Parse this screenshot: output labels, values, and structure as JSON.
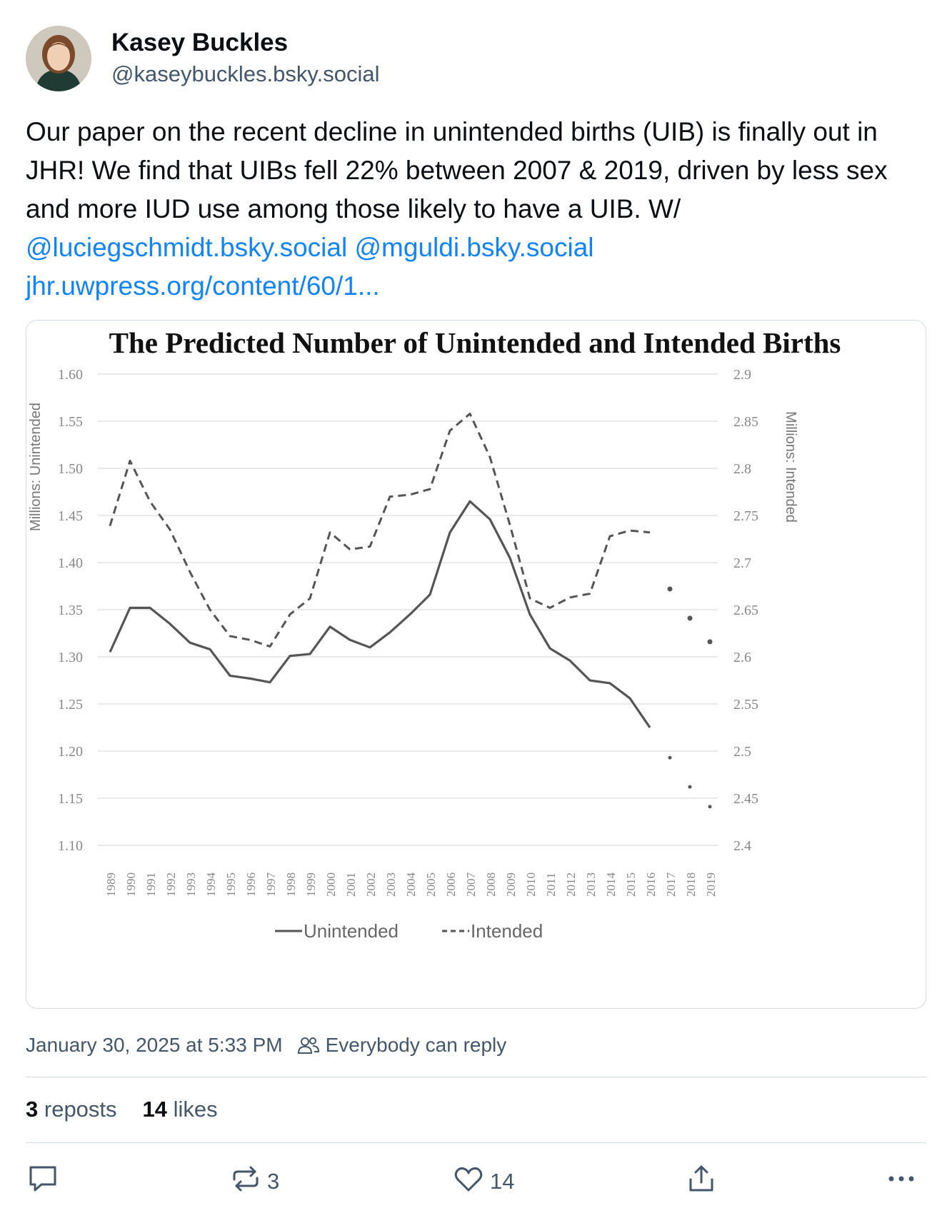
{
  "post": {
    "author_name": "Kasey Buckles",
    "author_handle": "@kaseybuckles.bsky.social",
    "text_main": "Our paper on the recent decline in unintended births (UIB) is finally out in JHR! We find that UIBs fell 22% between 2007 & 2019, driven by less sex and more IUD use among those likely to have a UIB. W/ ",
    "mention_1": "@luciegschmidt.bsky.social",
    "mention_2": "@mguldi.bsky.social",
    "link_text": "jhr.uwpress.org/content/60/1...",
    "timestamp": "January 30, 2025 at 5:33 PM",
    "reply_setting": "Everybody can reply",
    "reposts_count": "3",
    "reposts_label": "reposts",
    "likes_count": "14",
    "likes_label": "likes",
    "action_repost_count": "3",
    "action_like_count": "14"
  },
  "icons": {
    "reply": "speech-bubble-icon",
    "repost": "repost-arrows-icon",
    "like": "heart-icon",
    "share": "share-upload-icon",
    "more": "ellipsis-icon",
    "audience": "people-icon"
  },
  "colors": {
    "link": "#1083fe",
    "muted": "#42576c",
    "text": "#0b0f14",
    "border": "#d4dbe2",
    "series": "#555555"
  },
  "chart_data": {
    "type": "line",
    "title": "The Predicted Number of Unintended and Intended Births",
    "ylabel": "Millions: Unintended",
    "y2label": "Millions: Intended",
    "ylim": [
      1.1,
      1.6
    ],
    "y2lim": [
      2.4,
      2.9
    ],
    "yticks": [
      "1.60",
      "1.55",
      "1.50",
      "1.45",
      "1.40",
      "1.35",
      "1.30",
      "1.25",
      "1.20",
      "1.15",
      "1.10"
    ],
    "y2ticks": [
      "2.9",
      "2.85",
      "2.8",
      "2.75",
      "2.7",
      "2.65",
      "2.6",
      "2.55",
      "2.5",
      "2.45",
      "2.4"
    ],
    "grid": true,
    "legend": "bottom",
    "x": [
      1989,
      1990,
      1991,
      1992,
      1993,
      1994,
      1995,
      1996,
      1997,
      1998,
      1999,
      2000,
      2001,
      2002,
      2003,
      2004,
      2005,
      2006,
      2007,
      2008,
      2009,
      2010,
      2011,
      2012,
      2013,
      2014,
      2015,
      2016,
      2017,
      2018,
      2019
    ],
    "series": [
      {
        "name": "Unintended",
        "axis": "left",
        "style": "solid",
        "values": [
          1.305,
          1.352,
          1.352,
          1.335,
          1.315,
          1.308,
          1.28,
          1.277,
          1.273,
          1.301,
          1.303,
          1.332,
          1.318,
          1.31,
          1.326,
          1.345,
          1.366,
          1.432,
          1.465,
          1.446,
          1.405,
          1.345,
          1.309,
          1.296,
          1.275,
          1.272,
          1.256,
          1.225,
          1.193,
          1.162,
          1.141
        ]
      },
      {
        "name": "Intended",
        "axis": "right",
        "style": "dashed",
        "values": [
          2.739,
          2.808,
          2.765,
          2.735,
          2.69,
          2.65,
          2.622,
          2.618,
          2.611,
          2.645,
          2.662,
          2.732,
          2.714,
          2.717,
          2.77,
          2.772,
          2.778,
          2.84,
          2.858,
          2.812,
          2.74,
          2.662,
          2.652,
          2.663,
          2.667,
          2.728,
          2.734,
          2.732,
          2.672,
          2.641,
          2.616
        ]
      }
    ],
    "projected_from": 2017
  }
}
